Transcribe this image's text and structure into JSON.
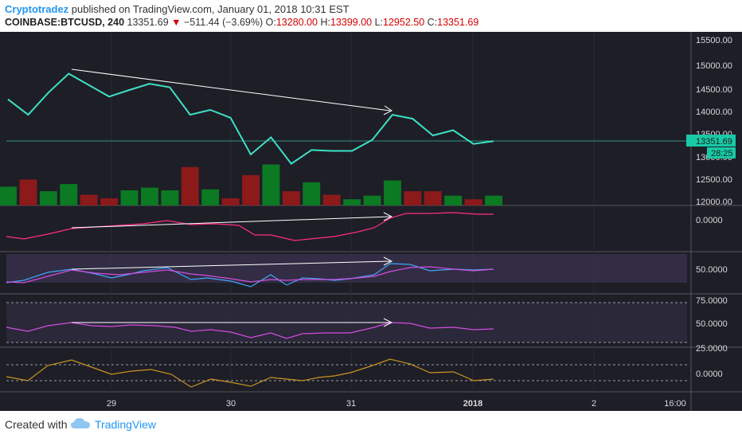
{
  "header": {
    "author": "Cryptotradez",
    "published": " published on TradingView.com, January 01, 2018 10:31 EST",
    "symbol": "COINBASE:BTCUSD, 240",
    "last": "13351.69",
    "change": "−511.44 (−3.69%)",
    "o_label": "O:",
    "o": "13280.00",
    "h_label": "H:",
    "h": "13399.00",
    "l_label": "L:",
    "l": "12952.50",
    "c_label": "C:",
    "c": "13351.69"
  },
  "colors": {
    "bg": "#1e1e27",
    "price_line": "#3de0c4",
    "vol_up": "#0b7a23",
    "vol_down": "#8c1a1a",
    "pink": "#ff2e7e",
    "violet": "#d24ddf",
    "blue": "#42a5f5",
    "orange": "#c8941e",
    "arrow": "#ffffff"
  },
  "axis": {
    "price_ticks": [
      "15500.00",
      "15000.00",
      "14500.00",
      "14000.00",
      "13500.00",
      "13000.00",
      "12500.00",
      "12000.00"
    ],
    "last_price_label": "13351.69",
    "countdown_label": "28:25",
    "macd_tick": "0.0000",
    "stoch_tick": "50.0000",
    "rsi_ticks": [
      "75.0000",
      "50.0000",
      "25.0000"
    ],
    "mom_tick": "0.0000",
    "time_ticks": [
      "29",
      "30",
      "31",
      "2018",
      "2",
      "16:00"
    ]
  },
  "footer": {
    "created": "Created with",
    "brand": "TradingView"
  },
  "chart_data": {
    "type": "line",
    "x": [
      1,
      2,
      3,
      4,
      5,
      6,
      7,
      8,
      9,
      10,
      11,
      12,
      13,
      14,
      15,
      16,
      17,
      18,
      19,
      20,
      21,
      22,
      23,
      24,
      25
    ],
    "series": [
      {
        "values": [
          14300,
          13950,
          14450,
          14880,
          14620,
          14360,
          14510,
          14650,
          14570,
          13950,
          14060,
          13880,
          13050,
          13440,
          12840,
          13150,
          13130,
          13130,
          13380,
          13950,
          13860,
          13480,
          13600,
          13290,
          13352
        ]
      },
      {
        "values": [
          2.1,
          2.9,
          1.6,
          2.4,
          1.2,
          0.8,
          1.7,
          2.0,
          1.7,
          4.3,
          1.8,
          0.8,
          3.4,
          4.6,
          1.6,
          2.6,
          1.2,
          0.7,
          1.1,
          2.8,
          1.6,
          1.6,
          1.1,
          0.7,
          1.1
        ],
        "colors": [
          "up",
          "down",
          "up",
          "up",
          "down",
          "down",
          "up",
          "up",
          "up",
          "down",
          "up",
          "down",
          "down",
          "up",
          "down",
          "up",
          "down",
          "up",
          "up",
          "up",
          "down",
          "down",
          "up",
          "down",
          "up"
        ]
      }
    ],
    "ylim": [
      11950,
      15700
    ]
  }
}
